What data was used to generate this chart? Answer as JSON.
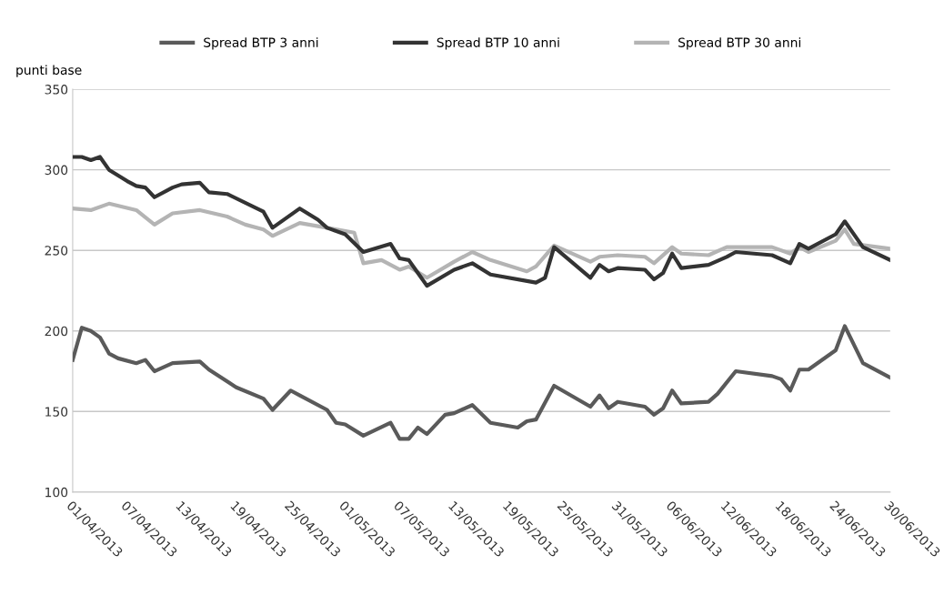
{
  "chart_data": {
    "type": "line",
    "ylabel": "punti base",
    "xlim": [
      "2013-04-01",
      "2013-06-30"
    ],
    "ylim": [
      100,
      350
    ],
    "yticks": [
      100,
      150,
      200,
      250,
      300,
      350
    ],
    "xticks": [
      {
        "value": "2013-04-01",
        "label": "01/04/2013"
      },
      {
        "value": "2013-04-07",
        "label": "07/04/2013"
      },
      {
        "value": "2013-04-13",
        "label": "13/04/2013"
      },
      {
        "value": "2013-04-19",
        "label": "19/04/2013"
      },
      {
        "value": "2013-04-25",
        "label": "25/04/2013"
      },
      {
        "value": "2013-05-01",
        "label": "01/05/2013"
      },
      {
        "value": "2013-05-07",
        "label": "07/05/2013"
      },
      {
        "value": "2013-05-13",
        "label": "13/05/2013"
      },
      {
        "value": "2013-05-19",
        "label": "19/05/2013"
      },
      {
        "value": "2013-05-25",
        "label": "25/05/2013"
      },
      {
        "value": "2013-05-31",
        "label": "31/05/2013"
      },
      {
        "value": "2013-06-06",
        "label": "06/06/2013"
      },
      {
        "value": "2013-06-12",
        "label": "12/06/2013"
      },
      {
        "value": "2013-06-18",
        "label": "18/06/2013"
      },
      {
        "value": "2013-06-24",
        "label": "24/06/2013"
      },
      {
        "value": "2013-06-30",
        "label": "30/06/2013"
      }
    ],
    "grid": "y",
    "legend": "top",
    "marker": "none",
    "line_style": "solid",
    "series": [
      {
        "name": "Spread BTP 3 anni",
        "color": "#5a5a5a",
        "x": [
          "2013-04-01",
          "2013-04-02",
          "2013-04-03",
          "2013-04-04",
          "2013-04-05",
          "2013-04-06",
          "2013-04-08",
          "2013-04-09",
          "2013-04-10",
          "2013-04-12",
          "2013-04-15",
          "2013-04-16",
          "2013-04-19",
          "2013-04-22",
          "2013-04-23",
          "2013-04-25",
          "2013-04-26",
          "2013-04-29",
          "2013-04-30",
          "2013-05-01",
          "2013-05-03",
          "2013-05-06",
          "2013-05-07",
          "2013-05-08",
          "2013-05-09",
          "2013-05-10",
          "2013-05-12",
          "2013-05-13",
          "2013-05-15",
          "2013-05-17",
          "2013-05-20",
          "2013-05-21",
          "2013-05-22",
          "2013-05-24",
          "2013-05-28",
          "2013-05-29",
          "2013-05-30",
          "2013-05-31",
          "2013-06-03",
          "2013-06-04",
          "2013-06-05",
          "2013-06-06",
          "2013-06-07",
          "2013-06-10",
          "2013-06-11",
          "2013-06-13",
          "2013-06-17",
          "2013-06-18",
          "2013-06-19",
          "2013-06-20",
          "2013-06-21",
          "2013-06-24",
          "2013-06-25",
          "2013-06-27",
          "2013-06-30"
        ],
        "values": [
          182,
          202,
          200,
          196,
          186,
          183,
          180,
          182,
          175,
          180,
          181,
          176,
          165,
          158,
          151,
          163,
          160,
          151,
          143,
          142,
          135,
          143,
          133,
          133,
          140,
          136,
          148,
          149,
          154,
          143,
          140,
          144,
          145,
          166,
          153,
          160,
          152,
          156,
          153,
          148,
          152,
          163,
          155,
          156,
          161,
          175,
          172,
          170,
          163,
          176,
          176,
          188,
          203,
          180,
          171
        ]
      },
      {
        "name": "Spread BTP 10 anni",
        "color": "#333333",
        "x": [
          "2013-04-01",
          "2013-04-02",
          "2013-04-03",
          "2013-04-04",
          "2013-04-05",
          "2013-04-07",
          "2013-04-08",
          "2013-04-09",
          "2013-04-10",
          "2013-04-12",
          "2013-04-13",
          "2013-04-15",
          "2013-04-16",
          "2013-04-18",
          "2013-04-22",
          "2013-04-23",
          "2013-04-26",
          "2013-04-28",
          "2013-04-29",
          "2013-05-01",
          "2013-05-03",
          "2013-05-06",
          "2013-05-07",
          "2013-05-08",
          "2013-05-09",
          "2013-05-10",
          "2013-05-13",
          "2013-05-15",
          "2013-05-17",
          "2013-05-22",
          "2013-05-23",
          "2013-05-24",
          "2013-05-28",
          "2013-05-29",
          "2013-05-30",
          "2013-05-31",
          "2013-06-03",
          "2013-06-04",
          "2013-06-05",
          "2013-06-06",
          "2013-06-07",
          "2013-06-10",
          "2013-06-12",
          "2013-06-13",
          "2013-06-17",
          "2013-06-19",
          "2013-06-20",
          "2013-06-21",
          "2013-06-24",
          "2013-06-25",
          "2013-06-27",
          "2013-06-30"
        ],
        "values": [
          308,
          308,
          306,
          308,
          300,
          293,
          290,
          289,
          283,
          289,
          291,
          292,
          286,
          285,
          274,
          264,
          276,
          269,
          264,
          260,
          249,
          254,
          245,
          244,
          236,
          228,
          238,
          242,
          235,
          230,
          233,
          252,
          233,
          241,
          237,
          239,
          238,
          232,
          236,
          248,
          239,
          241,
          246,
          249,
          247,
          242,
          254,
          251,
          260,
          268,
          252,
          244
        ]
      },
      {
        "name": "Spread BTP 30 anni",
        "color": "#b4b4b4",
        "x": [
          "2013-04-01",
          "2013-04-03",
          "2013-04-05",
          "2013-04-08",
          "2013-04-10",
          "2013-04-12",
          "2013-04-15",
          "2013-04-18",
          "2013-04-20",
          "2013-04-22",
          "2013-04-23",
          "2013-04-26",
          "2013-04-29",
          "2013-05-02",
          "2013-05-03",
          "2013-05-05",
          "2013-05-07",
          "2013-05-08",
          "2013-05-10",
          "2013-05-13",
          "2013-05-15",
          "2013-05-17",
          "2013-05-21",
          "2013-05-22",
          "2013-05-24",
          "2013-05-28",
          "2013-05-29",
          "2013-05-31",
          "2013-06-03",
          "2013-06-04",
          "2013-06-06",
          "2013-06-07",
          "2013-06-10",
          "2013-06-12",
          "2013-06-17",
          "2013-06-19",
          "2013-06-20",
          "2013-06-21",
          "2013-06-24",
          "2013-06-25",
          "2013-06-26",
          "2013-06-30"
        ],
        "values": [
          276,
          275,
          279,
          275,
          266,
          273,
          275,
          271,
          266,
          263,
          259,
          267,
          264,
          261,
          242,
          244,
          238,
          240,
          233,
          243,
          249,
          244,
          237,
          240,
          253,
          243,
          246,
          247,
          246,
          242,
          252,
          248,
          247,
          252,
          252,
          248,
          252,
          249,
          256,
          263,
          254,
          251
        ]
      }
    ]
  }
}
